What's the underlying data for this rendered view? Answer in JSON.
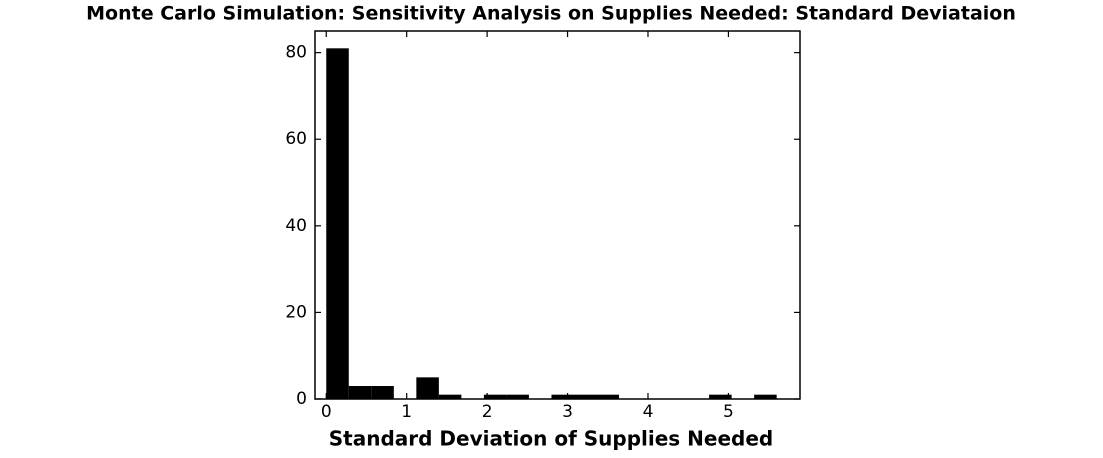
{
  "chart_data": {
    "type": "histogram",
    "title": "Monte Carlo Simulation: Sensitivity Analysis on Supplies Needed: Standard Deviataion",
    "x_label": "Standard Deviation of Supplies Needed",
    "bins": [
      0,
      0.28,
      0.56,
      0.84,
      1.12,
      1.4,
      1.68,
      1.96,
      2.24,
      2.52,
      2.8,
      3.08,
      3.36,
      3.64,
      3.92,
      4.2,
      4.48,
      4.76,
      5.04,
      5.32,
      5.6
    ],
    "counts": [
      81,
      3,
      3,
      0,
      5,
      1,
      0,
      1,
      1,
      0,
      1,
      1,
      1,
      0,
      0,
      0,
      0,
      1,
      0,
      1
    ],
    "color": "#000000",
    "xlim": [
      -0.14,
      5.89
    ],
    "ylim": [
      0,
      85
    ],
    "xticks": [
      0,
      1,
      2,
      3,
      4,
      5
    ],
    "yticks": [
      0,
      20,
      40,
      60,
      80
    ]
  }
}
